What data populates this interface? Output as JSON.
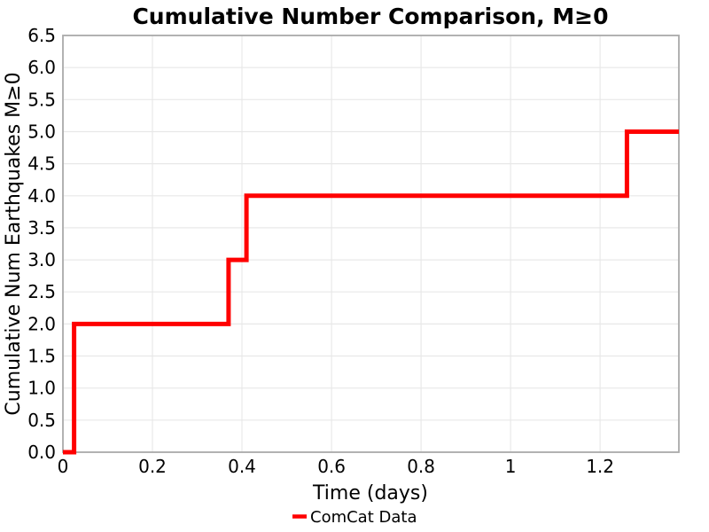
{
  "chart_data": {
    "type": "line",
    "step_style": "post",
    "title": "Cumulative Number Comparison, M≥0",
    "xlabel": "Time (days)",
    "ylabel": "Cumulative Num Earthquakes M≥0",
    "xlim": [
      0,
      1.376
    ],
    "ylim": [
      0,
      6.5
    ],
    "xtick_values": [
      0,
      0.2,
      0.4,
      0.6,
      0.8,
      1.0,
      1.2
    ],
    "xtick_labels": [
      "0",
      "0.2",
      "0.4",
      "0.6",
      "0.8",
      "1",
      "1.2"
    ],
    "ytick_values": [
      0,
      0.5,
      1,
      1.5,
      2,
      2.5,
      3,
      3.5,
      4,
      4.5,
      5,
      5.5,
      6,
      6.5
    ],
    "ytick_labels": [
      "0.0",
      "0.5",
      "1.0",
      "1.5",
      "2.0",
      "2.5",
      "3.0",
      "3.5",
      "4.0",
      "4.5",
      "5.0",
      "5.5",
      "6.0",
      "6.5"
    ],
    "grid": true,
    "legend": {
      "position": "bottom-center",
      "entries": [
        {
          "label": "ComCat Data",
          "color": "#ff0000"
        }
      ]
    },
    "series": [
      {
        "name": "ComCat Data",
        "color": "#ff0000",
        "line_width": 5,
        "points": [
          [
            0,
            0
          ],
          [
            0.025,
            0
          ],
          [
            0.025,
            2
          ],
          [
            0.37,
            2
          ],
          [
            0.37,
            3
          ],
          [
            0.41,
            3
          ],
          [
            0.41,
            4
          ],
          [
            1.26,
            4
          ],
          [
            1.26,
            5
          ],
          [
            1.376,
            5
          ]
        ],
        "event_times": [
          0.025,
          0.025,
          0.37,
          0.41,
          1.26
        ],
        "final_count": 5
      }
    ]
  },
  "colors": {
    "line": "#ff0000",
    "grid": "#e8e8e8",
    "border": "#aaaaaa",
    "text": "#000000",
    "background": "#ffffff"
  }
}
